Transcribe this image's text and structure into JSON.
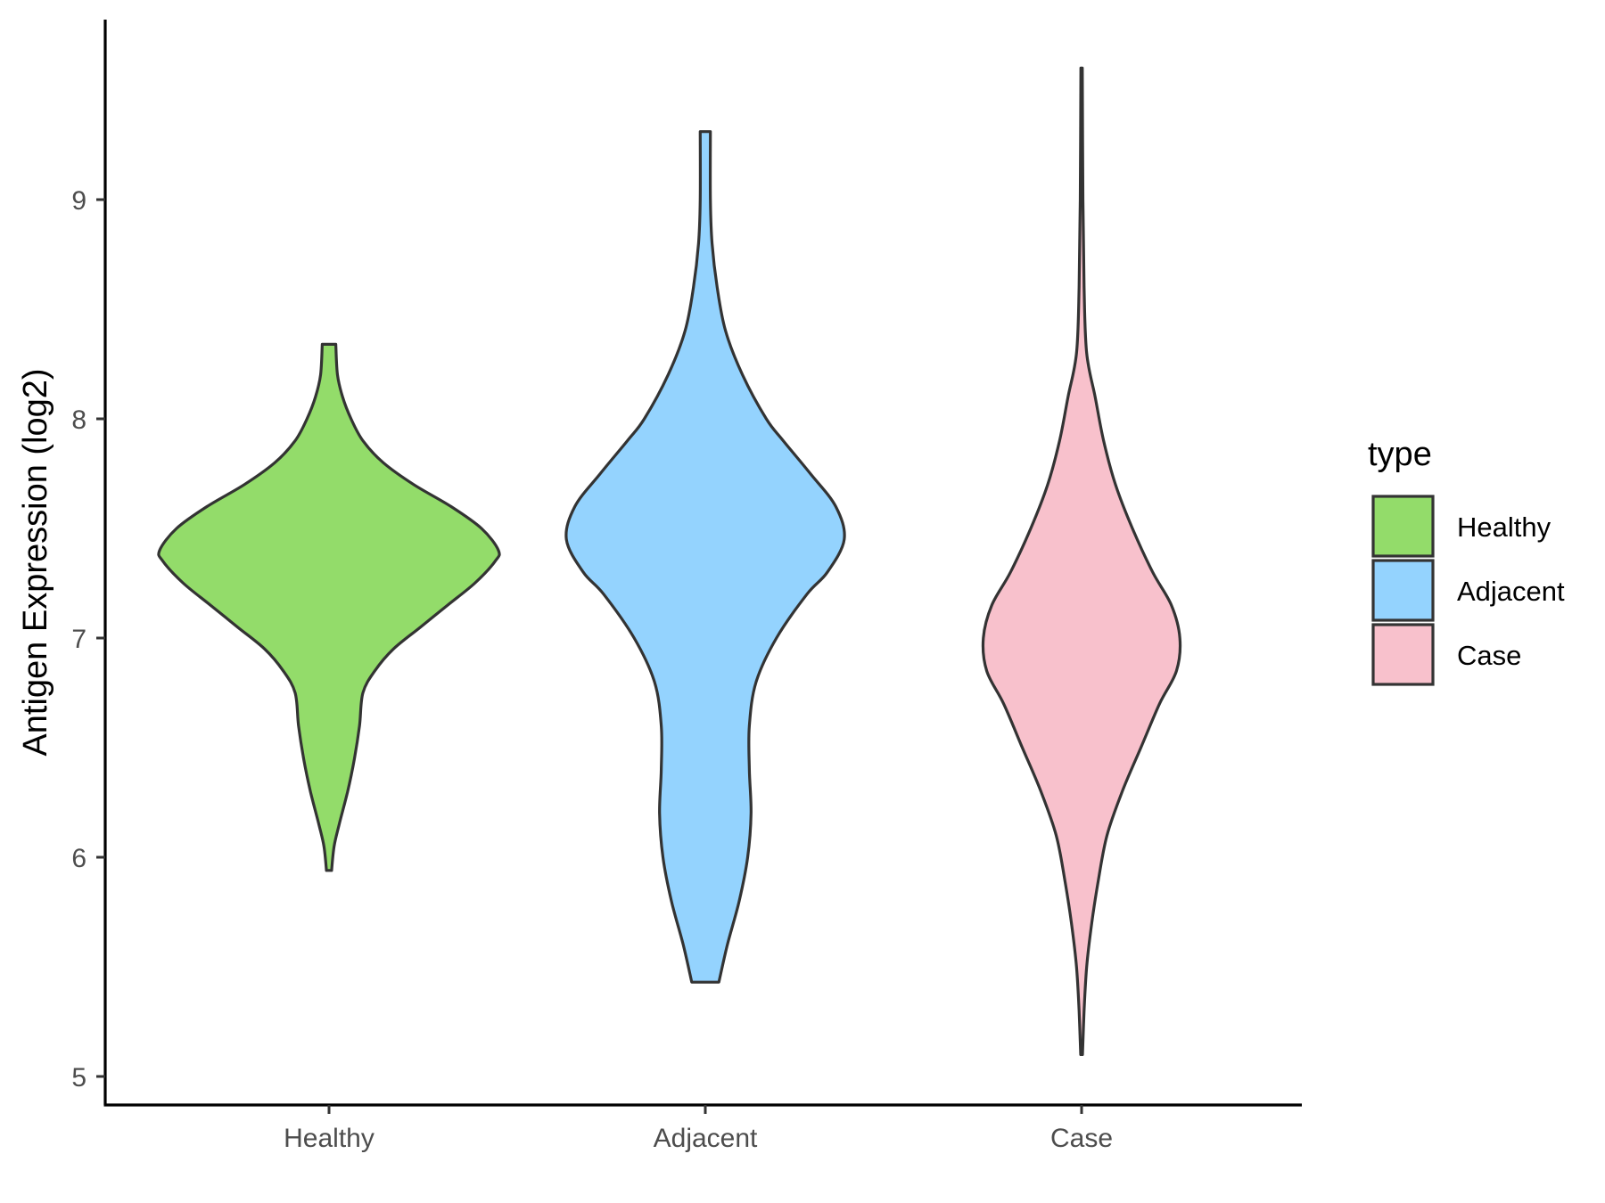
{
  "chart_data": {
    "type": "violin",
    "title": "",
    "xlabel": "",
    "ylabel": "Antigen Expression (log2)",
    "ylim": [
      4.95,
      9.8
    ],
    "yticks": [
      5,
      6,
      7,
      8,
      9
    ],
    "categories": [
      "Healthy",
      "Adjacent",
      "Case"
    ],
    "grid": false,
    "legend": {
      "title": "type",
      "position": "right",
      "entries": [
        {
          "label": "Healthy",
          "color": "#93DC6A"
        },
        {
          "label": "Adjacent",
          "color": "#94D3FE"
        },
        {
          "label": "Case",
          "color": "#F8C1CC"
        }
      ]
    },
    "series": [
      {
        "category": "Healthy",
        "color": "#93DC6A",
        "min": 5.94,
        "max": 8.34,
        "density_profile": [
          [
            5.94,
            0.015
          ],
          [
            6.05,
            0.03
          ],
          [
            6.15,
            0.06
          ],
          [
            6.3,
            0.11
          ],
          [
            6.45,
            0.15
          ],
          [
            6.6,
            0.18
          ],
          [
            6.75,
            0.2
          ],
          [
            6.85,
            0.27
          ],
          [
            6.95,
            0.38
          ],
          [
            7.05,
            0.54
          ],
          [
            7.15,
            0.7
          ],
          [
            7.25,
            0.86
          ],
          [
            7.35,
            0.98
          ],
          [
            7.4,
            1.0
          ],
          [
            7.5,
            0.9
          ],
          [
            7.6,
            0.72
          ],
          [
            7.7,
            0.5
          ],
          [
            7.8,
            0.32
          ],
          [
            7.9,
            0.2
          ],
          [
            8.0,
            0.13
          ],
          [
            8.1,
            0.08
          ],
          [
            8.2,
            0.05
          ],
          [
            8.34,
            0.04
          ]
        ]
      },
      {
        "category": "Adjacent",
        "color": "#94D3FE",
        "min": 5.43,
        "max": 9.31,
        "density_profile": [
          [
            5.43,
            0.08
          ],
          [
            5.6,
            0.13
          ],
          [
            5.8,
            0.2
          ],
          [
            6.0,
            0.25
          ],
          [
            6.2,
            0.27
          ],
          [
            6.4,
            0.26
          ],
          [
            6.6,
            0.26
          ],
          [
            6.8,
            0.3
          ],
          [
            7.0,
            0.42
          ],
          [
            7.2,
            0.6
          ],
          [
            7.3,
            0.72
          ],
          [
            7.45,
            0.82
          ],
          [
            7.6,
            0.77
          ],
          [
            7.75,
            0.62
          ],
          [
            7.9,
            0.46
          ],
          [
            8.0,
            0.36
          ],
          [
            8.2,
            0.22
          ],
          [
            8.4,
            0.12
          ],
          [
            8.6,
            0.07
          ],
          [
            8.8,
            0.04
          ],
          [
            9.0,
            0.03
          ],
          [
            9.31,
            0.03
          ]
        ]
      },
      {
        "category": "Case",
        "color": "#F8C1CC",
        "min": 5.1,
        "max": 9.6,
        "density_profile": [
          [
            5.1,
            0.005
          ],
          [
            5.3,
            0.015
          ],
          [
            5.5,
            0.03
          ],
          [
            5.7,
            0.06
          ],
          [
            5.9,
            0.1
          ],
          [
            6.1,
            0.15
          ],
          [
            6.3,
            0.24
          ],
          [
            6.5,
            0.35
          ],
          [
            6.7,
            0.46
          ],
          [
            6.85,
            0.56
          ],
          [
            7.0,
            0.58
          ],
          [
            7.15,
            0.53
          ],
          [
            7.3,
            0.42
          ],
          [
            7.5,
            0.3
          ],
          [
            7.7,
            0.2
          ],
          [
            7.9,
            0.13
          ],
          [
            8.1,
            0.08
          ],
          [
            8.3,
            0.03
          ],
          [
            8.6,
            0.015
          ],
          [
            9.0,
            0.008
          ],
          [
            9.6,
            0.004
          ]
        ]
      }
    ]
  }
}
